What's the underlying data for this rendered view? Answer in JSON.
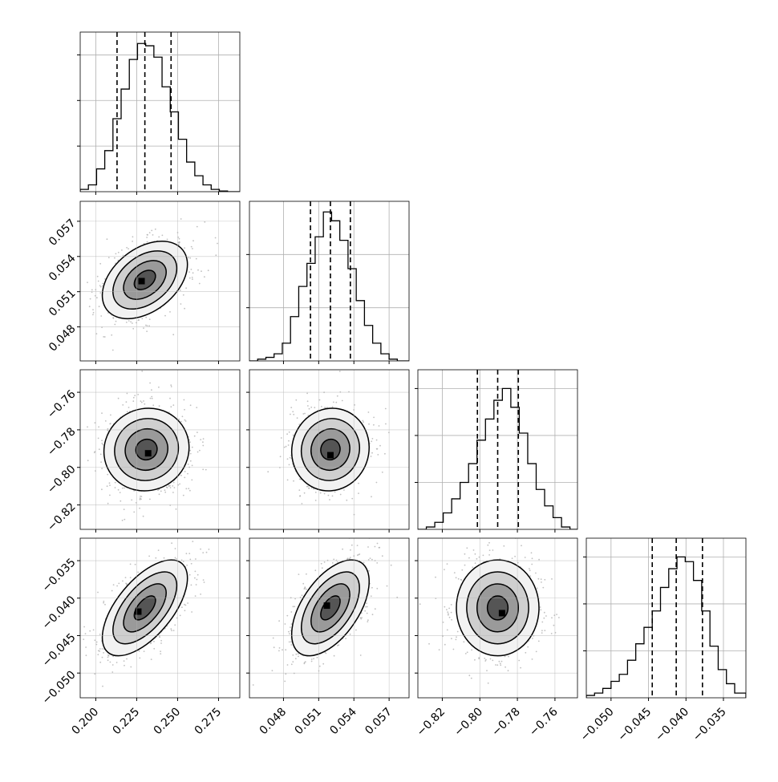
{
  "chart_data": {
    "type": "corner",
    "parameters": [
      {
        "index": 0,
        "ticks": [
          0.2,
          0.225,
          0.25,
          0.275
        ],
        "tick_labels": [
          "0.200",
          "0.225",
          "0.250",
          "0.275"
        ],
        "range": [
          0.1905,
          0.288
        ],
        "quantiles": [
          0.213,
          0.23,
          0.246
        ],
        "hist": {
          "edges": [
            0.1905,
            0.1955,
            0.2005,
            0.2055,
            0.2105,
            0.2155,
            0.2205,
            0.2255,
            0.2305,
            0.2355,
            0.2405,
            0.2455,
            0.2505,
            0.2555,
            0.2605,
            0.2655,
            0.2705,
            0.2755,
            0.2805,
            0.288
          ],
          "counts": [
            1,
            3,
            10,
            18,
            32,
            45,
            58,
            65,
            64,
            59,
            46,
            35,
            23,
            13,
            7,
            3,
            1,
            0.3,
            0
          ],
          "ymax": 70
        }
      },
      {
        "index": 1,
        "ticks": [
          0.048,
          0.051,
          0.054,
          0.057
        ],
        "tick_labels": [
          "0.048",
          "0.051",
          "0.054",
          "0.057"
        ],
        "range": [
          0.0451,
          0.0587
        ],
        "quantiles": [
          0.0503,
          0.052,
          0.0537
        ],
        "hist": {
          "edges": [
            0.0451,
            0.0458,
            0.0465,
            0.0472,
            0.0479,
            0.0486,
            0.0493,
            0.05,
            0.0507,
            0.0514,
            0.0521,
            0.0528,
            0.0535,
            0.0542,
            0.0549,
            0.0556,
            0.0563,
            0.057,
            0.0577,
            0.0587
          ],
          "counts": [
            0,
            1,
            2,
            4,
            10,
            25,
            42,
            55,
            70,
            84,
            79,
            68,
            52,
            34,
            20,
            10,
            4,
            1,
            0
          ],
          "ymax": 90
        }
      },
      {
        "index": 2,
        "ticks": [
          -0.82,
          -0.8,
          -0.78,
          -0.76
        ],
        "tick_labels": [
          "−0.82",
          "−0.80",
          "−0.78",
          "−0.76"
        ],
        "range": [
          -0.833,
          -0.748
        ],
        "quantiles": [
          -0.8013,
          -0.7905,
          -0.7795
        ],
        "hist": {
          "edges": [
            -0.833,
            -0.8285,
            -0.824,
            -0.8195,
            -0.815,
            -0.8105,
            -0.806,
            -0.8015,
            -0.797,
            -0.7925,
            -0.788,
            -0.7835,
            -0.779,
            -0.7745,
            -0.77,
            -0.7655,
            -0.761,
            -0.7565,
            -0.752,
            -0.748
          ],
          "counts": [
            0,
            1,
            3,
            7,
            13,
            20,
            28,
            38,
            47,
            55,
            60,
            52,
            41,
            28,
            17,
            10,
            5,
            1,
            0
          ],
          "ymax": 68
        }
      },
      {
        "index": 3,
        "ticks": [
          -0.05,
          -0.045,
          -0.04,
          -0.035
        ],
        "tick_labels": [
          "−0.050",
          "−0.045",
          "−0.040",
          "−0.035"
        ],
        "range": [
          -0.0533,
          -0.032
        ],
        "quantiles": [
          -0.0445,
          -0.0413,
          -0.0378
        ],
        "hist": {
          "edges": [
            -0.0533,
            -0.0522,
            -0.0511,
            -0.05,
            -0.0489,
            -0.0478,
            -0.0467,
            -0.0456,
            -0.0445,
            -0.0434,
            -0.0423,
            -0.0412,
            -0.0401,
            -0.039,
            -0.0379,
            -0.0368,
            -0.0357,
            -0.0346,
            -0.0335,
            -0.032
          ],
          "counts": [
            1,
            2,
            4,
            7,
            10,
            16,
            23,
            30,
            37,
            47,
            55,
            60,
            58,
            50,
            37,
            22,
            12,
            6,
            2
          ],
          "ymax": 68
        }
      }
    ],
    "pairs": [
      {
        "x": 0,
        "y": 1,
        "mean": [
          0.23,
          0.052
        ],
        "std": [
          0.013,
          0.00165
        ],
        "corr": 0.4,
        "peak": [
          0.228,
          0.0519
        ]
      },
      {
        "x": 0,
        "y": 2,
        "mean": [
          0.231,
          -0.7905
        ],
        "std": [
          0.013,
          0.011
        ],
        "corr": 0.05,
        "peak": [
          0.232,
          -0.7925
        ]
      },
      {
        "x": 1,
        "y": 2,
        "mean": [
          0.052,
          -0.7905
        ],
        "std": [
          0.00165,
          0.011
        ],
        "corr": 0.05,
        "peak": [
          0.052,
          -0.7935
        ]
      },
      {
        "x": 0,
        "y": 3,
        "mean": [
          0.23,
          -0.0413
        ],
        "std": [
          0.013,
          0.0032
        ],
        "corr": 0.62,
        "peak": [
          0.226,
          -0.0418
        ]
      },
      {
        "x": 1,
        "y": 3,
        "mean": [
          0.052,
          -0.0413
        ],
        "std": [
          0.00165,
          0.0032
        ],
        "corr": 0.55,
        "peak": [
          0.0517,
          -0.041
        ]
      },
      {
        "x": 2,
        "y": 3,
        "mean": [
          -0.7905,
          -0.0413
        ],
        "std": [
          0.011,
          0.0032
        ],
        "corr": 0.0,
        "peak": [
          -0.7882,
          -0.042
        ]
      }
    ],
    "contour_levels_sigma": [
      0.5,
      1.0,
      1.5,
      2.0
    ],
    "grid": true,
    "colors": {
      "line": "#000000",
      "points": "#b0b0b0",
      "grid": "#b0b0b0"
    }
  }
}
